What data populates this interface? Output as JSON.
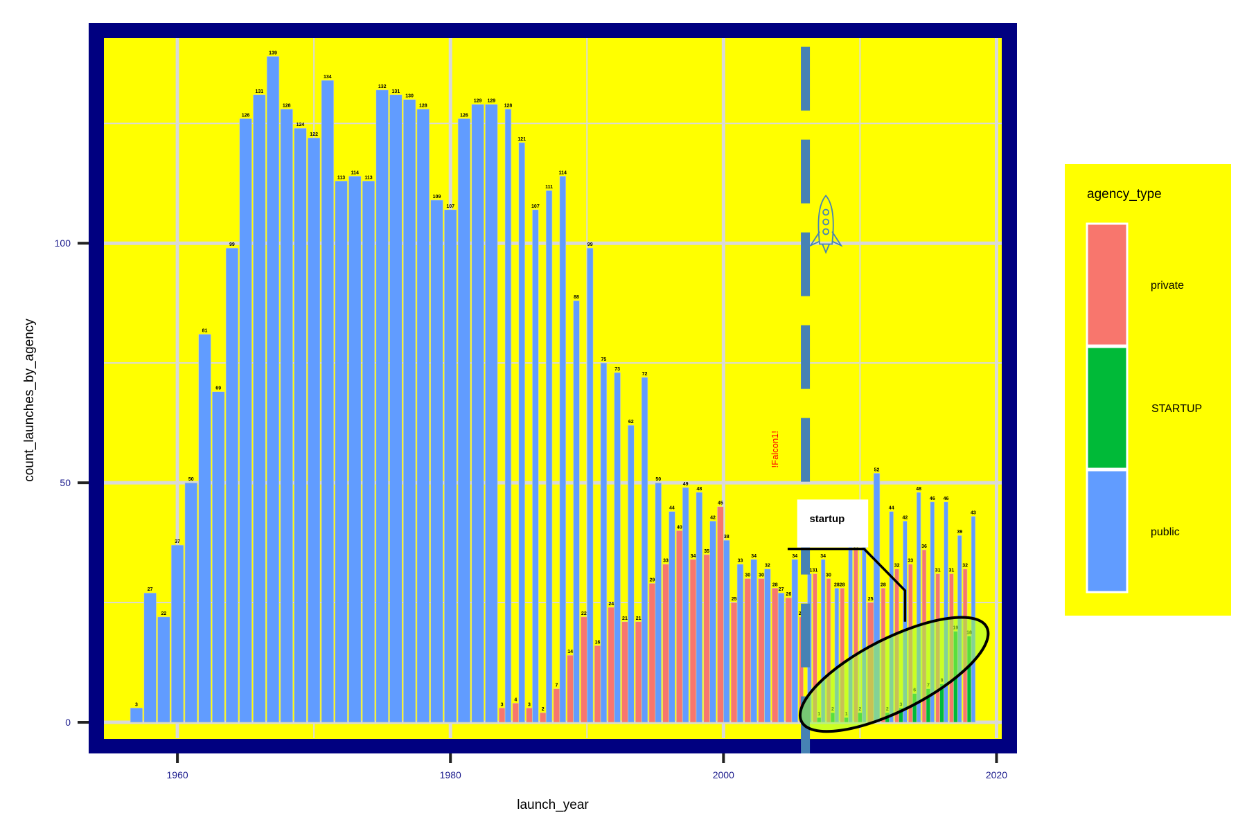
{
  "chart_data": {
    "type": "bar",
    "xlabel": "launch_year",
    "ylabel": "count_launches_by_agency",
    "xlim": [
      1953.5,
      2021.5
    ],
    "ylim": [
      -6.5,
      146
    ],
    "x_ticks": [
      1960,
      1980,
      2000,
      2020
    ],
    "y_ticks": [
      0,
      50,
      100
    ],
    "grid": true,
    "legend": {
      "title": "agency_type",
      "position": "right",
      "entries": [
        {
          "key": "private",
          "label": "private",
          "color": "#F8766D"
        },
        {
          "key": "startup",
          "label": "STARTUP",
          "color": "#00BA38"
        },
        {
          "key": "public",
          "label": "public",
          "color": "#619CFF"
        }
      ]
    },
    "colors": {
      "panel_border": "#000080",
      "panel_background": "#ffff00",
      "grid": "#d9d9d9",
      "private": "#F8766D",
      "startup": "#00BA38",
      "public": "#619CFF"
    },
    "series": [
      {
        "key": "public",
        "years": [
          1957,
          1958,
          1959,
          1960,
          1961,
          1962,
          1963,
          1964,
          1965,
          1966,
          1967,
          1968,
          1969,
          1970,
          1971,
          1972,
          1973,
          1974,
          1975,
          1976,
          1977,
          1978,
          1979,
          1980,
          1981,
          1982,
          1983,
          1984,
          1985,
          1986,
          1987,
          1988,
          1989,
          1990,
          1991,
          1992,
          1993,
          1994,
          1995,
          1996,
          1997,
          1998,
          1999,
          2000,
          2001,
          2002,
          2003,
          2004,
          2005,
          2006,
          2007,
          2008,
          2009,
          2010,
          2011,
          2012,
          2013,
          2014,
          2015,
          2016,
          2017,
          2018
        ],
        "values": [
          3,
          27,
          22,
          37,
          50,
          81,
          69,
          99,
          126,
          131,
          139,
          128,
          124,
          122,
          134,
          113,
          114,
          113,
          132,
          131,
          130,
          128,
          109,
          107,
          126,
          129,
          129,
          128,
          121,
          107,
          111,
          114,
          88,
          99,
          75,
          73,
          62,
          72,
          50,
          44,
          49,
          48,
          42,
          38,
          33,
          34,
          32,
          27,
          34,
          31,
          34,
          28,
          37,
          37,
          52,
          44,
          42,
          48,
          46,
          46,
          39,
          43
        ]
      },
      {
        "key": "private",
        "years": [
          1984,
          1985,
          1986,
          1987,
          1988,
          1989,
          1990,
          1991,
          1992,
          1993,
          1994,
          1995,
          1996,
          1997,
          1998,
          1999,
          2000,
          2001,
          2002,
          2003,
          2004,
          2005,
          2006,
          2007,
          2008,
          2009,
          2010,
          2011,
          2012,
          2013,
          2014,
          2015,
          2016,
          2017,
          2018
        ],
        "values": [
          3,
          4,
          3,
          2,
          7,
          14,
          22,
          16,
          24,
          21,
          21,
          29,
          33,
          40,
          34,
          35,
          45,
          25,
          30,
          30,
          28,
          26,
          22,
          31,
          30,
          28,
          36,
          25,
          28,
          32,
          33,
          36,
          31,
          31,
          32
        ]
      },
      {
        "key": "startup",
        "years": [
          2006,
          2007,
          2008,
          2009,
          2010,
          2012,
          2013,
          2014,
          2015,
          2016,
          2017,
          2018
        ],
        "values": [
          1,
          1,
          2,
          1,
          2,
          2,
          3,
          6,
          7,
          8,
          19,
          18
        ]
      }
    ],
    "annotations": [
      {
        "type": "text",
        "text": "!Falcon1!",
        "x": 2004,
        "y": 57,
        "color": "#ff0000",
        "rotation": -90
      },
      {
        "type": "label",
        "text": "startup",
        "x": 2007.5,
        "y": 42
      },
      {
        "type": "vline",
        "x": 2006,
        "style": "dashed"
      },
      {
        "type": "ellipse",
        "cx": 2012.5,
        "cy": 10,
        "fill": "#a0ff40"
      },
      {
        "type": "icon",
        "name": "rocket-icon",
        "x": 2007.5,
        "y": 103
      }
    ]
  }
}
